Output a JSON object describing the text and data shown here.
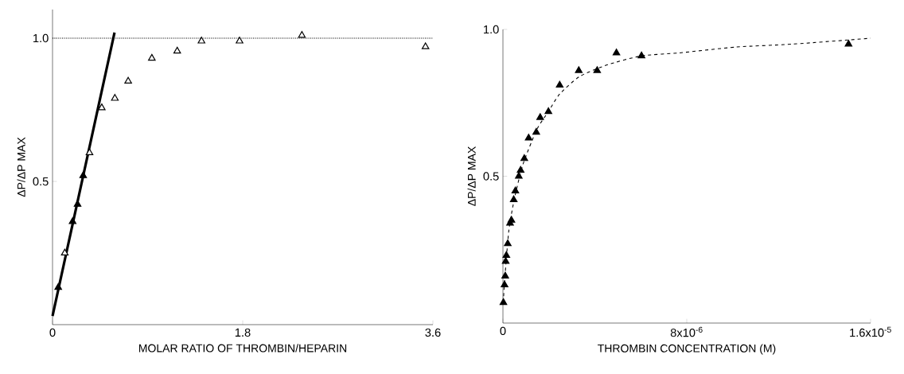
{
  "chart_data": [
    {
      "type": "scatter",
      "xlabel": "MOLAR RATIO OF THROMBIN/HEPARIN",
      "ylabel": "ΔP/ΔP MAX",
      "xlim": [
        0,
        3.6
      ],
      "ylim": [
        0,
        1.1
      ],
      "xticks": [
        0,
        1.8,
        3.6
      ],
      "yticks": [
        0.5,
        {
          "value": 1,
          "label": "1.0"
        }
      ],
      "series": [
        {
          "marker": "triangle",
          "color": "#000000",
          "x": [
            0.054,
            0.19,
            0.237,
            0.29
          ],
          "values": [
            0.13,
            0.36,
            0.42,
            0.52
          ]
        },
        {
          "marker": "triangle",
          "color": "#ffffff",
          "x": [
            0.116,
            0.35,
            0.466,
            0.59,
            0.716,
            0.94,
            1.18,
            1.41,
            1.77,
            2.36,
            3.53
          ],
          "values": [
            0.25,
            0.6,
            0.757,
            0.79,
            0.85,
            0.93,
            0.955,
            0.99,
            0.99,
            1.01,
            0.97
          ]
        },
        {
          "type": "line",
          "color": "#000000",
          "line_style": "solid",
          "x": [
            0,
            0.587
          ],
          "values": [
            0.03,
            1.02
          ]
        }
      ],
      "ref_lines": [
        {
          "axis": "y",
          "value": 1,
          "line_style": "dotted",
          "color": "#000000"
        }
      ]
    },
    {
      "type": "scatter",
      "xlabel": "THROMBIN CONCENTRATION (M)",
      "ylabel": "ΔP/ΔP MAX",
      "xlim": [
        0,
        1.6e-05
      ],
      "ylim": [
        0,
        1
      ],
      "xticks": [
        0,
        {
          "value": 8e-06,
          "label": "8x10$^{-6}$"
        },
        {
          "value": 1.6e-05,
          "label": "1.6x10$^{-5}$"
        }
      ],
      "yticks": [
        0.5,
        {
          "value": 1,
          "label": "1.0"
        }
      ],
      "series": [
        {
          "marker": "triangle",
          "color": "#000000",
          "x": [
            2e-08,
            7e-08,
            1e-07,
            1.2e-07,
            1.5e-07,
            2.1e-07,
            3.1e-07,
            3.7e-07,
            4.7e-07,
            5.4e-07,
            6.9e-07,
            7.7e-07,
            9.3e-07,
            1.12e-06,
            1.45e-06,
            1.62e-06,
            1.98e-06,
            2.47e-06,
            3.3e-06,
            4.1e-06,
            4.94e-06,
            6.03e-06,
            1.504e-05
          ],
          "values": [
            0.07,
            0.13,
            0.16,
            0.21,
            0.23,
            0.27,
            0.34,
            0.35,
            0.42,
            0.45,
            0.5,
            0.52,
            0.56,
            0.63,
            0.65,
            0.7,
            0.72,
            0.81,
            0.86,
            0.86,
            0.92,
            0.91,
            0.95
          ]
        },
        {
          "type": "line",
          "color": "#000000",
          "line_style": "dashed",
          "x": [
            2e-08,
            6e-08,
            2.5e-07,
            4.9e-07,
            8.7e-07,
            1.48e-06,
            1.98e-06,
            2.47e-06,
            3.34e-06,
            4.57e-06,
            6.03e-06,
            7.66e-06,
            1.014e-05,
            1.261e-05,
            1.6e-05
          ],
          "values": [
            0.07,
            0.13,
            0.31,
            0.42,
            0.54,
            0.66,
            0.72,
            0.78,
            0.84,
            0.88,
            0.91,
            0.92,
            0.94,
            0.95,
            0.97
          ]
        }
      ]
    }
  ]
}
